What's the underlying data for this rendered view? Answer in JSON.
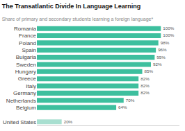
{
  "chart_data": {
    "type": "bar",
    "orientation": "horizontal",
    "title": "The Transatlantic Divide In Language Learning",
    "subtitle": "Share of primary and secondary students learning a foreign language*",
    "categories": [
      "Romania",
      "France",
      "Poland",
      "Spain",
      "Bulgaria",
      "Sweden",
      "Hungary",
      "Greece",
      "Italy",
      "Germany",
      "Netherlands",
      "Belgium",
      null,
      "United States"
    ],
    "values": [
      100,
      100,
      98,
      96,
      95,
      92,
      85,
      82,
      82,
      82,
      70,
      64,
      null,
      20
    ],
    "value_labels": [
      "100%",
      "100%",
      "98%",
      "96%",
      "95%",
      "92%",
      "85%",
      "82%",
      "82%",
      "82%",
      "70%",
      "64%",
      null,
      "20%"
    ],
    "colors": [
      "#3dbf9e",
      "#3dbf9e",
      "#3dbf9e",
      "#3dbf9e",
      "#3dbf9e",
      "#3dbf9e",
      "#3dbf9e",
      "#3dbf9e",
      "#3dbf9e",
      "#3dbf9e",
      "#3dbf9e",
      "#3dbf9e",
      "#3dbf9e",
      "#a8dfd0"
    ],
    "xlim": [
      0,
      115
    ],
    "data_labels": true,
    "tick_labels": "y",
    "grid": false
  }
}
